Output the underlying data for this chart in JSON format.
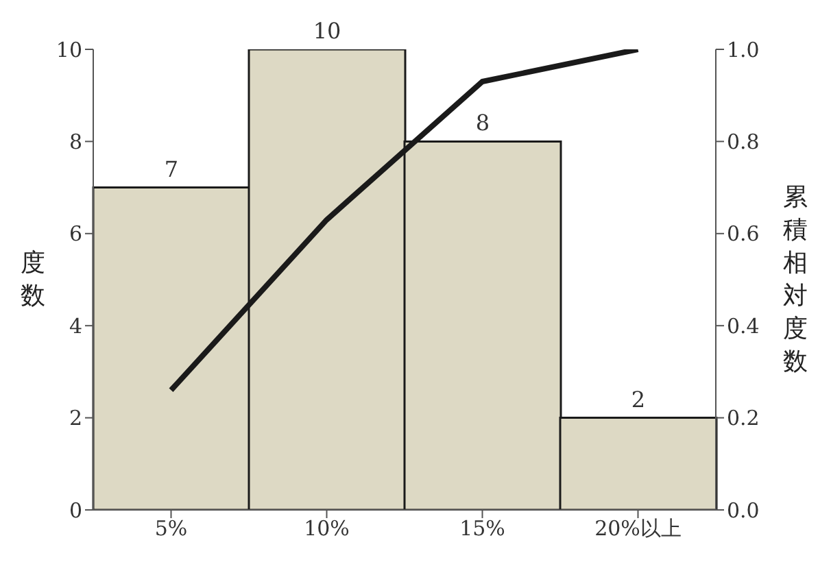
{
  "chart_data": {
    "type": "bar",
    "categories": [
      "5%",
      "10%",
      "15%",
      "20%以上"
    ],
    "series": [
      {
        "color": "#ddd9c4",
        "values": [
          7,
          10,
          8,
          2
        ],
        "value_labels": [
          "7",
          "10",
          "8",
          "2"
        ]
      },
      {
        "type": "line",
        "color": "#1a1a1a",
        "axis": "y2",
        "values": [
          0.26,
          0.63,
          0.93,
          1.0
        ]
      }
    ],
    "ylabel": "度数",
    "y2label": "累積相対度数",
    "ylim": [
      0,
      10
    ],
    "yticks": [
      0,
      2,
      4,
      6,
      8,
      10
    ],
    "y2lim": [
      0,
      1
    ],
    "y2ticks": [
      {
        "value": 0,
        "label": "0.0"
      },
      {
        "value": 0.2,
        "label": "0.2"
      },
      {
        "value": 0.4,
        "label": "0.4"
      },
      {
        "value": 0.6,
        "label": "0.6"
      },
      {
        "value": 0.8,
        "label": "0.8"
      },
      {
        "value": 1,
        "label": "1.0"
      }
    ]
  }
}
